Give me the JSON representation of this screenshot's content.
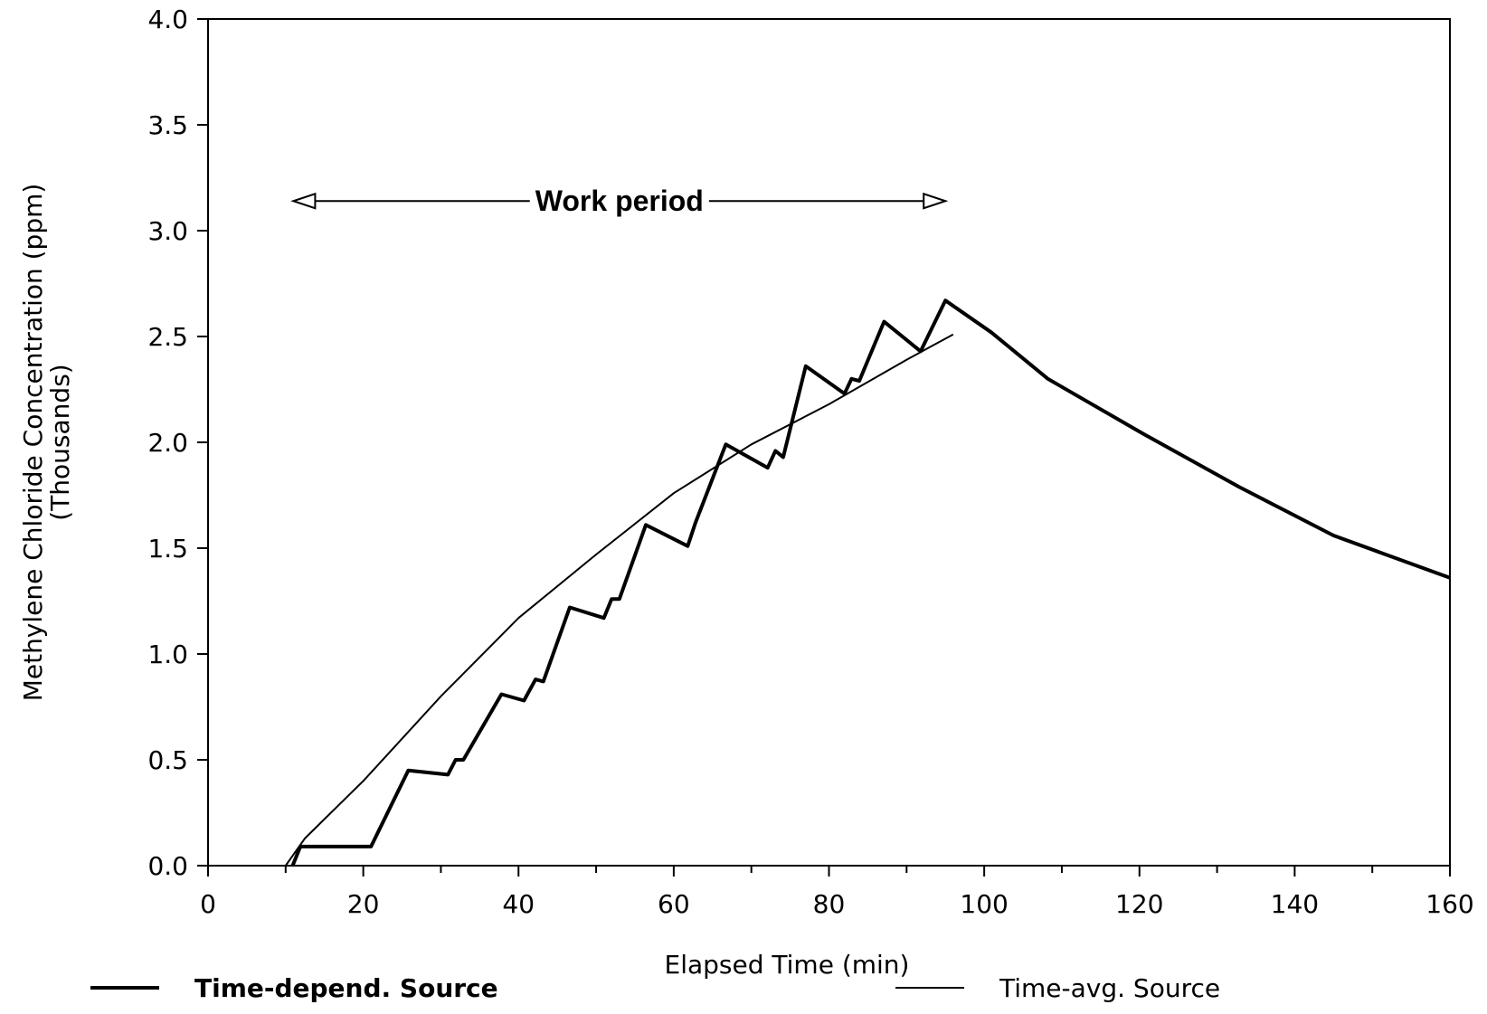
{
  "chart_data": {
    "type": "line",
    "xlabel": "Elapsed Time (min)",
    "ylabel": [
      "Methylene Chloride Concentration (ppm)",
      "(Thousands)"
    ],
    "annotation": {
      "text": "Work period",
      "x": [
        11,
        95
      ],
      "y": 3.14
    },
    "xlim": [
      0,
      160
    ],
    "xticks": [
      0,
      20,
      40,
      60,
      80,
      100,
      120,
      140,
      160
    ],
    "xminor_ticks": [
      10,
      30,
      50,
      70,
      90,
      110,
      130,
      150
    ],
    "ylim": [
      0,
      4
    ],
    "yticks": [
      {
        "value": 0,
        "label": "0.0"
      },
      0.5,
      {
        "value": 1,
        "label": "1.0"
      },
      1.5,
      {
        "value": 2,
        "label": "2.0"
      },
      2.5,
      {
        "value": 3,
        "label": "3.0"
      },
      3.5,
      {
        "value": 4,
        "label": "4.0"
      }
    ],
    "grid": false,
    "series": [
      {
        "name": "Time-depend. Source",
        "color": "#000000",
        "width": "thick",
        "x": [
          10.9,
          11.9,
          21,
          25.8,
          30.9,
          31.9,
          32.9,
          37.8,
          40.7,
          42.2,
          43.2,
          46.6,
          51,
          52,
          53,
          56.4,
          61.8,
          62.8,
          66.7,
          72.1,
          73.1,
          74.1,
          77,
          82,
          82.9,
          83.9,
          87.1,
          91.8,
          95,
          100.9,
          108.2,
          120.5,
          132.8,
          145,
          160
        ],
        "values": [
          0,
          0.09,
          0.09,
          0.45,
          0.43,
          0.5,
          0.5,
          0.81,
          0.78,
          0.88,
          0.87,
          1.22,
          1.17,
          1.26,
          1.26,
          1.61,
          1.51,
          1.62,
          1.99,
          1.88,
          1.96,
          1.93,
          2.36,
          2.23,
          2.3,
          2.29,
          2.57,
          2.43,
          2.67,
          2.52,
          2.3,
          2.04,
          1.79,
          1.56,
          1.36
        ]
      },
      {
        "name": "Time-avg. Source",
        "color": "#000000",
        "width": "thin",
        "x": [
          10,
          12.5,
          20,
          30,
          40,
          50,
          60,
          70,
          80,
          90,
          96
        ],
        "values": [
          0,
          0.13,
          0.4,
          0.8,
          1.17,
          1.47,
          1.76,
          1.99,
          2.18,
          2.39,
          2.51
        ]
      }
    ]
  }
}
